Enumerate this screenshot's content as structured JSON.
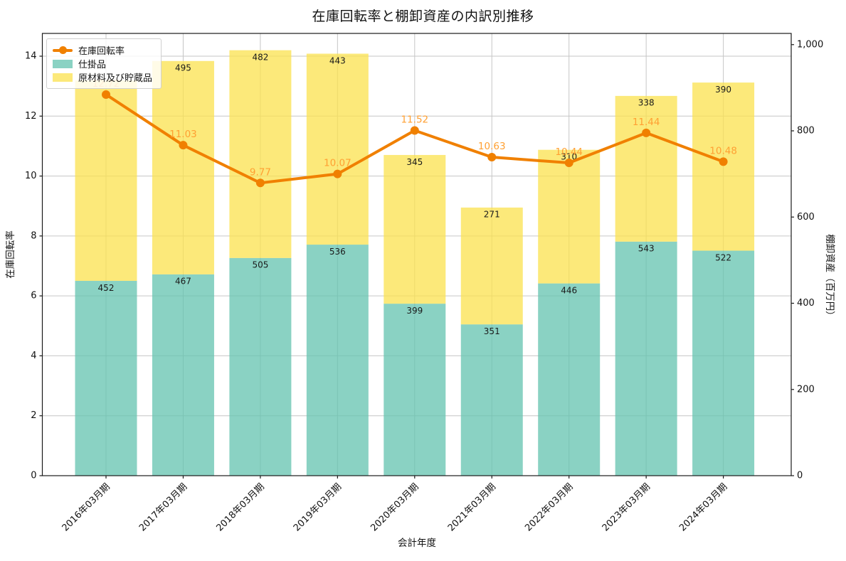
{
  "title": "在庫回転率と棚卸資産の内訳別推移",
  "axes": {
    "xlabel": "会計年度",
    "ylabel_left": "在庫回転率",
    "ylabel_right": "棚卸資産（百万円）"
  },
  "legend": {
    "items": [
      {
        "label": "在庫回転率",
        "type": "line"
      },
      {
        "label": "仕掛品",
        "type": "patch"
      },
      {
        "label": "原材料及び貯蔵品",
        "type": "patch"
      }
    ]
  },
  "colors": {
    "line": "#f08000",
    "line_label": "#ffa033",
    "bar_wip_base": "#63c3af",
    "bar_materials_base": "#fbe14d",
    "bar_fill_opacity": 0.75,
    "grid": "#c6c6c6",
    "spine": "#1a1a1a",
    "bar_value_label": "#1a1a1a"
  },
  "chart_data": {
    "type": "bar",
    "subtype": "stacked-bar-with-line",
    "categories": [
      "2016年03月期",
      "2017年03月期",
      "2018年03月期",
      "2019年03月期",
      "2020年03月期",
      "2021年03月期",
      "2022年03月期",
      "2023年03月期",
      "2024年03月期"
    ],
    "series": [
      {
        "name": "在庫回転率",
        "type": "line",
        "axis": "left",
        "values": [
          12.72,
          11.03,
          9.77,
          10.07,
          11.52,
          10.63,
          10.44,
          11.44,
          10.48
        ]
      },
      {
        "name": "仕掛品",
        "type": "bar",
        "axis": "right",
        "stack_order": 0,
        "values": [
          452,
          467,
          505,
          536,
          399,
          351,
          446,
          543,
          522
        ]
      },
      {
        "name": "原材料及び貯蔵品",
        "type": "bar",
        "axis": "right",
        "stack_order": 1,
        "values": [
          465,
          495,
          482,
          443,
          345,
          271,
          310,
          338,
          390
        ],
        "first_value_label_hidden_by_legend": true,
        "note": "2016 segment label is covered by the legend box; 465 estimated from bar height"
      }
    ],
    "title": "在庫回転率と棚卸資産の内訳別推移",
    "xlabel": "会計年度",
    "ylabel_left": "在庫回転率",
    "ylabel_right": "棚卸資産（百万円）",
    "ylim_left": [
      0,
      14.76
    ],
    "ylim_right": [
      0,
      1026
    ],
    "yticks_left": [
      0,
      2,
      4,
      6,
      8,
      10,
      12,
      14
    ],
    "yticks_right": [
      0,
      200,
      400,
      600,
      800,
      1000
    ],
    "ytick_right_labels": [
      "0",
      "200",
      "400",
      "600",
      "800",
      "1,000"
    ],
    "grid": true,
    "x_tick_rotation_deg": 45,
    "legend_position": "upper left"
  }
}
